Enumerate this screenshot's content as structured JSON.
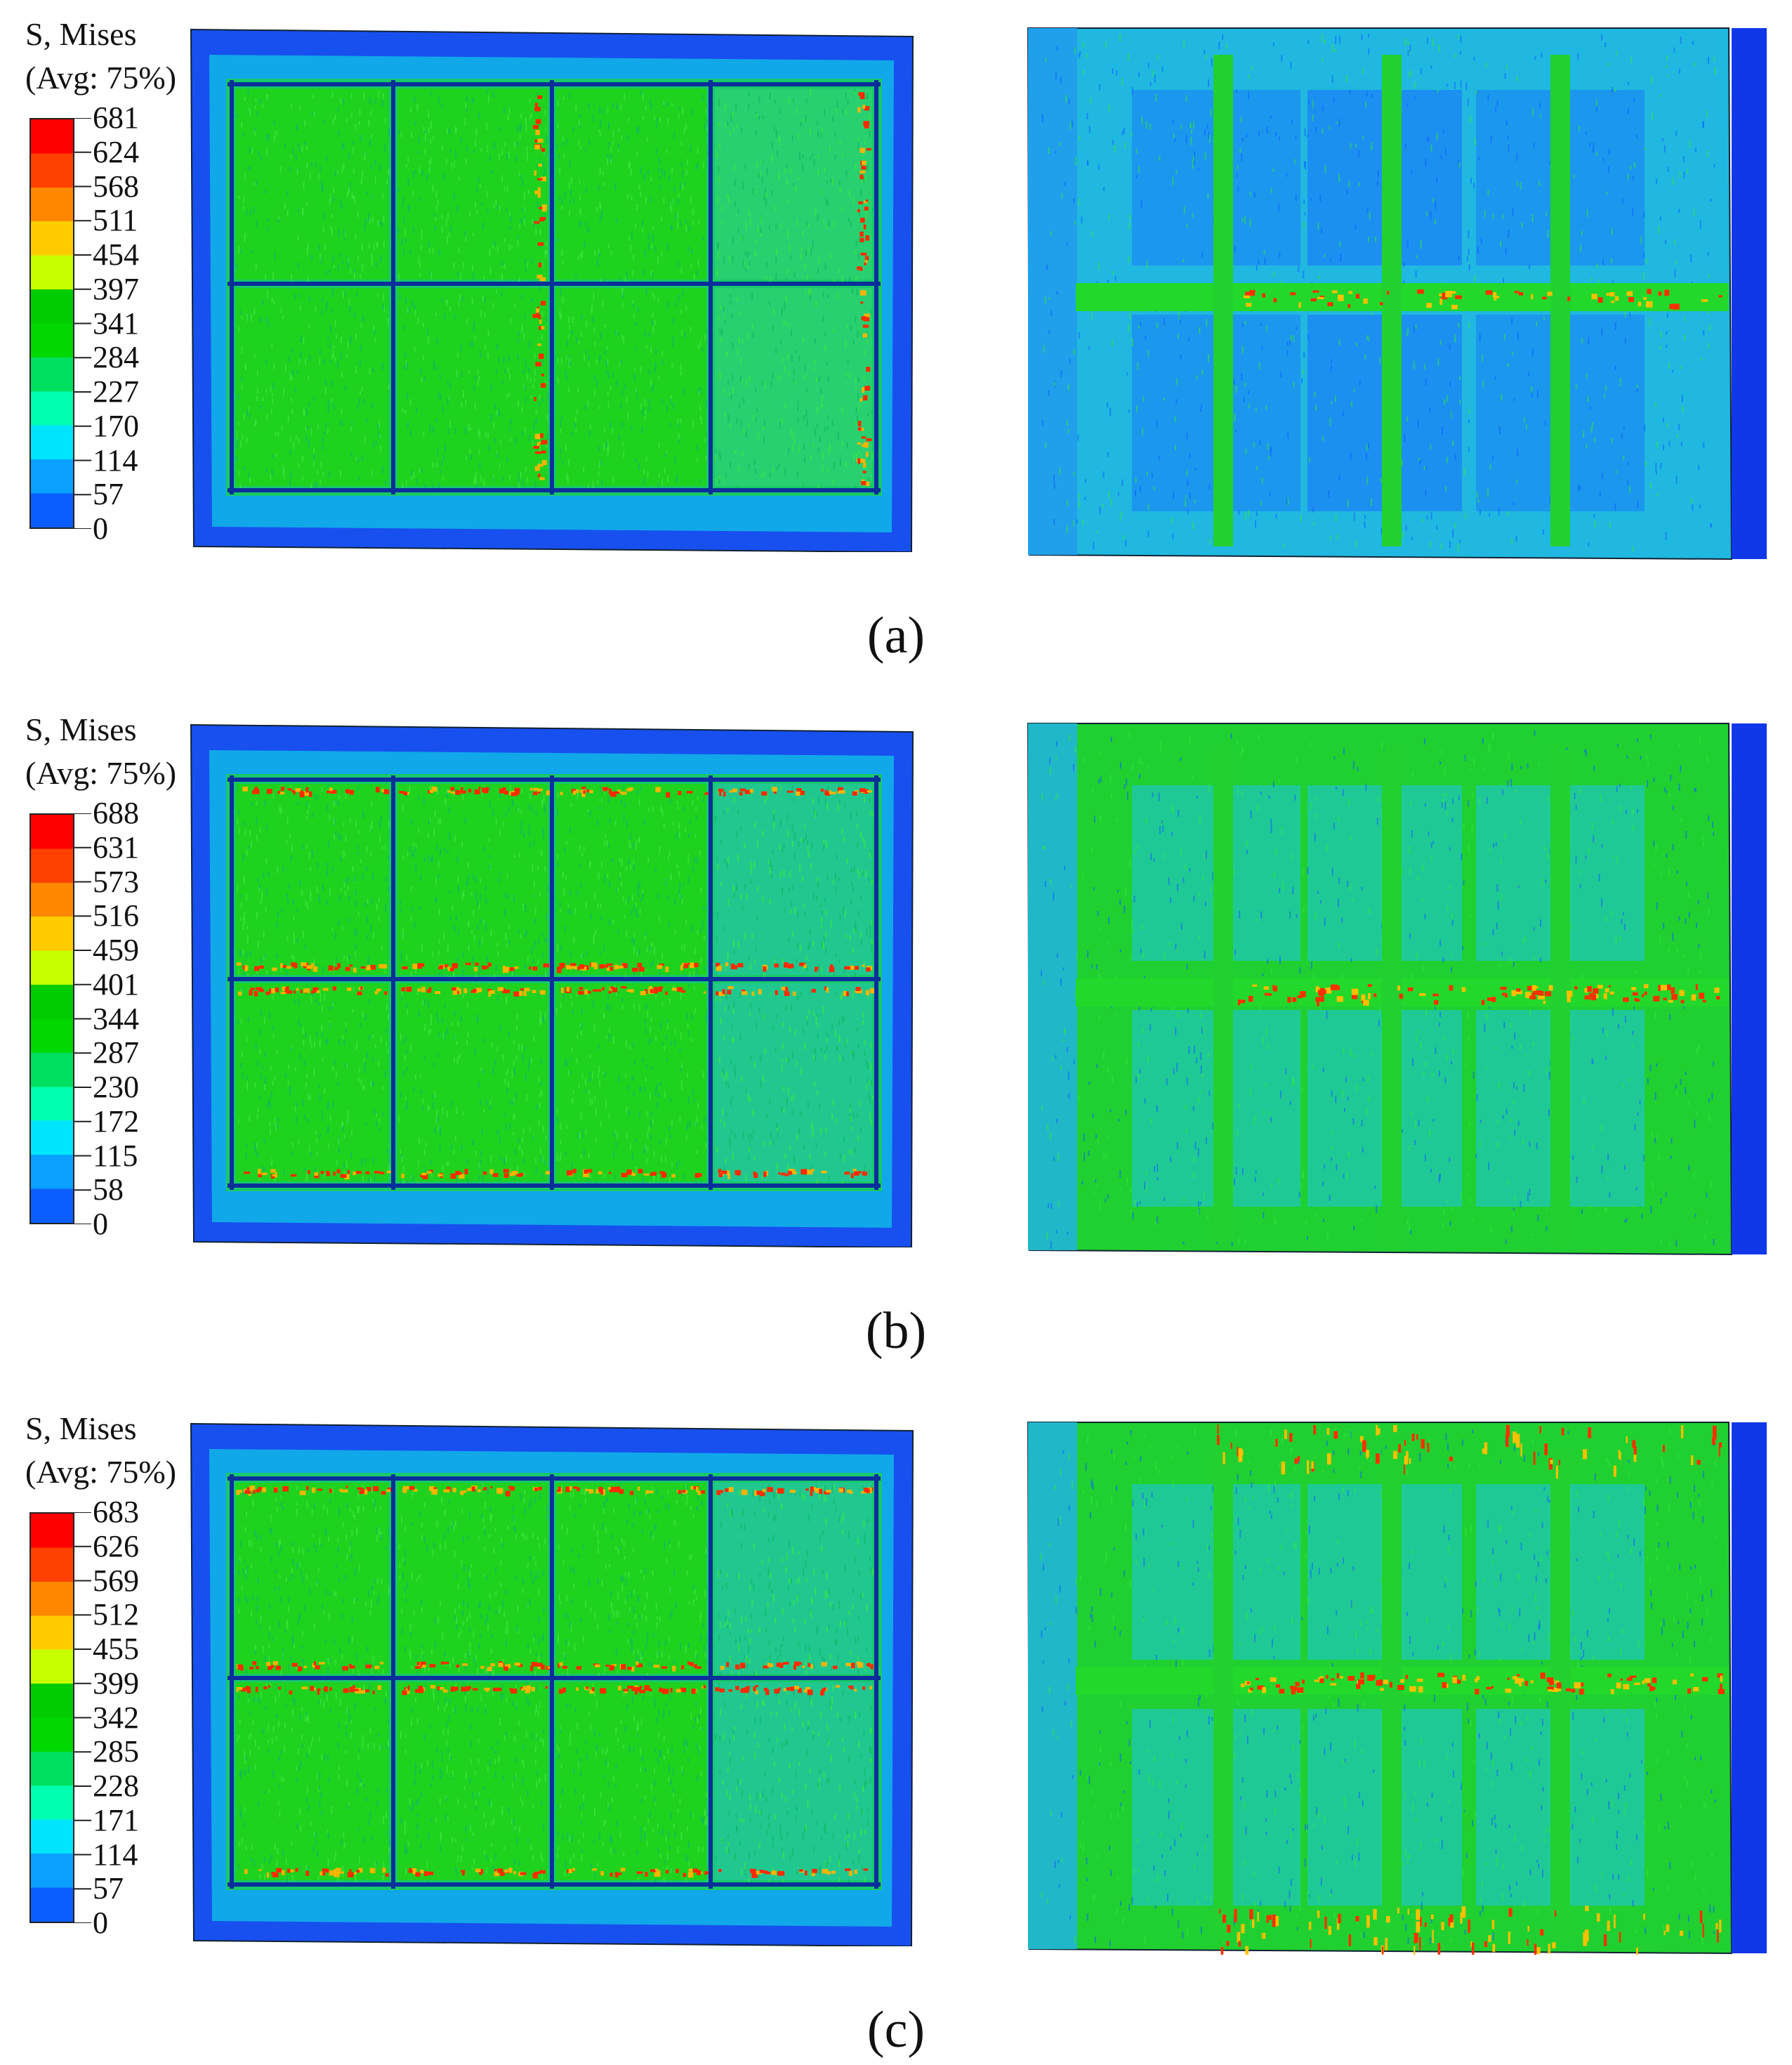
{
  "legend_title_line1": "S, Mises",
  "legend_title_line2": "(Avg: 75%)",
  "colors": [
    "#0000ff",
    "#0a5dff",
    "#0aa0ff",
    "#00e5ff",
    "#00ffb0",
    "#00e060",
    "#00d800",
    "#00cc00",
    "#c8ff00",
    "#ffcc00",
    "#ff8800",
    "#ff4000",
    "#ff0000"
  ],
  "panels": [
    {
      "caption": "(a)",
      "legend_values": [
        "681",
        "624",
        "568",
        "511",
        "454",
        "397",
        "341",
        "284",
        "227",
        "170",
        "114",
        "57",
        "0"
      ]
    },
    {
      "caption": "(b)",
      "legend_values": [
        "688",
        "631",
        "573",
        "516",
        "459",
        "401",
        "344",
        "287",
        "230",
        "172",
        "115",
        "58",
        "0"
      ]
    },
    {
      "caption": "(c)",
      "legend_values": [
        "683",
        "626",
        "569",
        "512",
        "455",
        "399",
        "342",
        "285",
        "228",
        "171",
        "114",
        "57",
        "0"
      ]
    }
  ]
}
